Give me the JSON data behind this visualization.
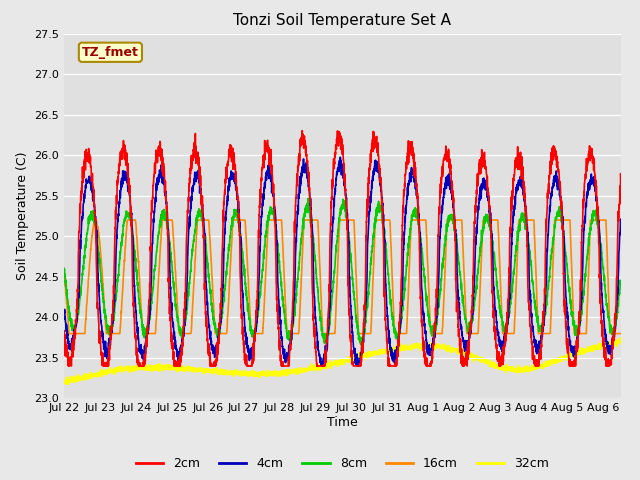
{
  "title": "Tonzi Soil Temperature Set A",
  "xlabel": "Time",
  "ylabel": "Soil Temperature (C)",
  "annotation": "TZ_fmet",
  "ylim": [
    23.0,
    27.5
  ],
  "yticks": [
    23.0,
    23.5,
    24.0,
    24.5,
    25.0,
    25.5,
    26.0,
    26.5,
    27.0,
    27.5
  ],
  "colors": {
    "2cm": "#ff0000",
    "4cm": "#0000bb",
    "8cm": "#00cc00",
    "16cm": "#ff8800",
    "32cm": "#ffff00"
  },
  "fig_bg": "#e8e8e8",
  "plot_bg": "#e0e0e0",
  "day_labels": [
    "Jul 22",
    "Jul 23",
    "Jul 24",
    "Jul 25",
    "Jul 26",
    "Jul 27",
    "Jul 28",
    "Jul 29",
    "Jul 30",
    "Jul 31",
    "Aug 1",
    "Aug 2",
    "Aug 3",
    "Aug 4",
    "Aug 5",
    "Aug 6"
  ],
  "legend_entries": [
    "2cm",
    "4cm",
    "8cm",
    "16cm",
    "32cm"
  ]
}
